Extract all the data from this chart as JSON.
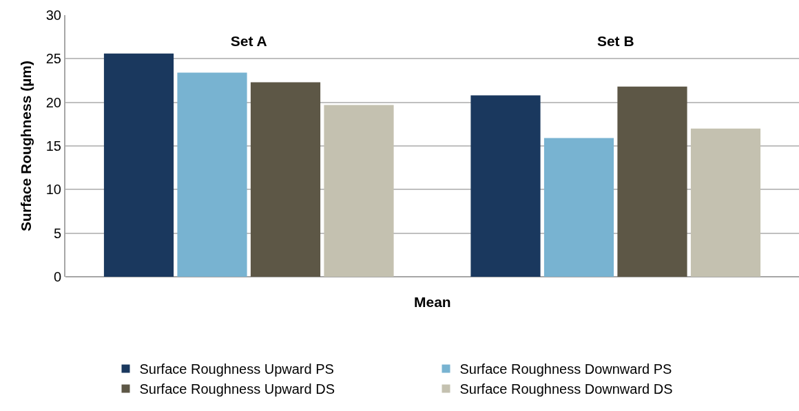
{
  "chart_data": {
    "type": "bar",
    "categories": [
      "Set A",
      "Set B"
    ],
    "xlabel": "Mean",
    "ylabel": "Surface Roughness (µm)",
    "series": [
      {
        "name": "Surface Roughness Upward PS",
        "color": "#1a385e",
        "values": [
          25.6,
          20.8
        ]
      },
      {
        "name": "Surface Roughness Downward PS",
        "color": "#78b3d1",
        "values": [
          23.4,
          15.9
        ]
      },
      {
        "name": "Surface Roughness Upward DS",
        "color": "#5d5746",
        "values": [
          22.3,
          21.8
        ]
      },
      {
        "name": "Surface Roughness Downward DS",
        "color": "#c4c1b0",
        "values": [
          19.7,
          17.0
        ]
      }
    ],
    "ylim": [
      0,
      30
    ],
    "yticks": [
      0,
      5,
      10,
      15,
      20,
      25,
      30
    ],
    "grid": "y",
    "legend": "bottom"
  }
}
